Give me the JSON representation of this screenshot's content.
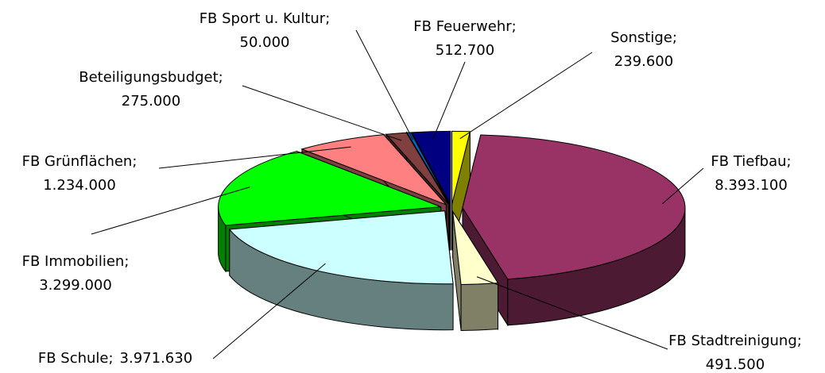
{
  "chart_data": {
    "type": "pie3d",
    "categories": [
      "Sonstige;",
      "FB Tiefbau;",
      "FB Stadtreinigung;",
      "FB Schule;",
      "FB Immobilien;",
      "FB Grünflächen;",
      "Beteiligungsbudget;",
      "FB Sport u. Kultur;",
      "FB Feuerwehr;"
    ],
    "values": [
      239600,
      8393100,
      491500,
      3971630,
      3299000,
      1234000,
      275000,
      50000,
      512700
    ],
    "value_labels": [
      "239.600",
      "8.393.100",
      "491.500",
      "3.971.630",
      "3.299.000",
      "1.234.000",
      "275.000",
      "50.000",
      "512.700"
    ],
    "colors": [
      "#ffff00",
      "#993366",
      "#ffffcc",
      "#ccffff",
      "#00ff00",
      "#ff8080",
      "#804040",
      "#0066cc",
      "#000080"
    ]
  }
}
